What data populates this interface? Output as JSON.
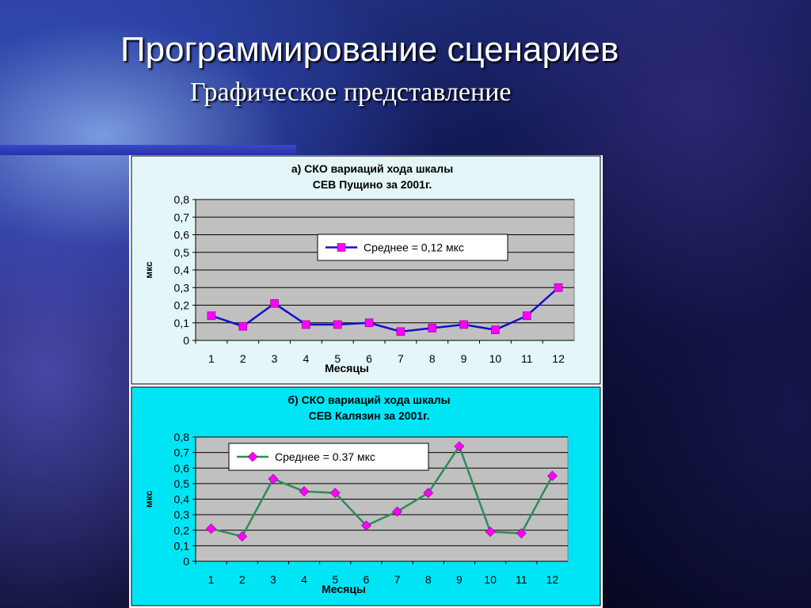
{
  "slide": {
    "title": "Программирование сценариев",
    "subtitle": "Графическое представление"
  },
  "colors": {
    "chart_a_frame": "#e4f6f8",
    "chart_b_frame": "#00e5f5",
    "plot_area": "#c0c0c0",
    "series_a": "#1010cc",
    "marker_a": "#ff00ff",
    "series_b": "#2e8b57",
    "marker_b": "#ff00ff"
  },
  "chart_data": [
    {
      "type": "line",
      "title": [
        "а) СКО вариаций хода шкалы",
        "СЕВ Пущино за 2001г."
      ],
      "xlabel": "Месяцы",
      "ylabel": "мкс",
      "categories": [
        "1",
        "2",
        "3",
        "4",
        "5",
        "6",
        "7",
        "8",
        "9",
        "10",
        "11",
        "12"
      ],
      "ylim": [
        0,
        0.8
      ],
      "yticks": [
        "0",
        "0,1",
        "0,2",
        "0,3",
        "0,4",
        "0,5",
        "0,6",
        "0,7",
        "0,8"
      ],
      "series": [
        {
          "name": "Среднее = 0,12 мкс",
          "marker": "square",
          "values": [
            0.14,
            0.08,
            0.21,
            0.09,
            0.09,
            0.1,
            0.05,
            0.07,
            0.09,
            0.06,
            0.14,
            0.3
          ]
        }
      ],
      "grid": true,
      "legend": "inside-top-center"
    },
    {
      "type": "line",
      "title": [
        "б) СКО вариаций хода шкалы",
        "СЕВ Калязин за 2001г."
      ],
      "xlabel": "Месяцы",
      "ylabel": "мкс",
      "categories": [
        "1",
        "2",
        "3",
        "4",
        "5",
        "6",
        "7",
        "8",
        "9",
        "10",
        "11",
        "12"
      ],
      "ylim": [
        0,
        0.8
      ],
      "yticks": [
        "0",
        "0,1",
        "0,2",
        "0,3",
        "0,4",
        "0,5",
        "0,6",
        "0,7",
        "0,8"
      ],
      "series": [
        {
          "name": "Среднее = 0.37 мкс",
          "marker": "diamond",
          "values": [
            0.21,
            0.16,
            0.53,
            0.45,
            0.44,
            0.23,
            0.32,
            0.44,
            0.74,
            0.19,
            0.18,
            0.55
          ]
        }
      ],
      "grid": true,
      "legend": "inside-top-left"
    }
  ]
}
